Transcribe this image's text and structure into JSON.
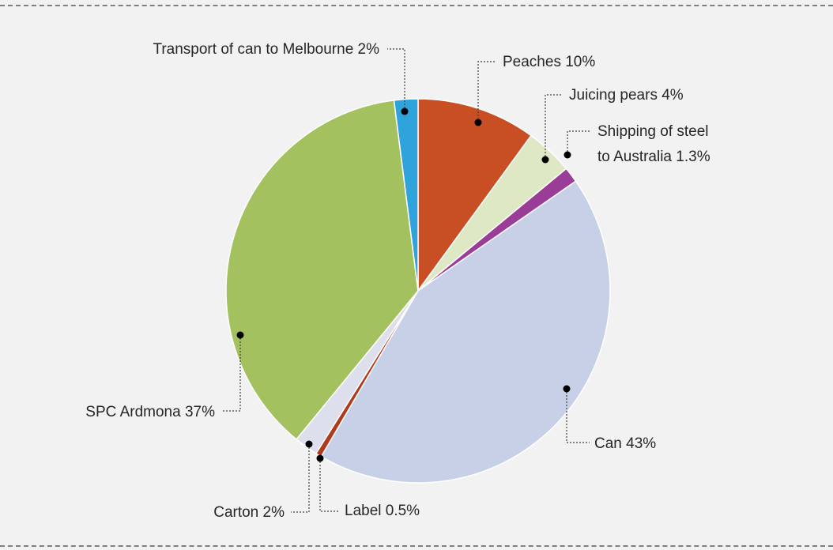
{
  "chart_data": {
    "type": "pie",
    "title": "",
    "slices": [
      {
        "label": "Peaches 10%",
        "value": 10,
        "color": "#c84e24"
      },
      {
        "label": "Juicing pears 4%",
        "value": 4,
        "color": "#dfe8c4"
      },
      {
        "label": "Shipping of steel to Australia 1.3%",
        "label_lines": [
          "Shipping of steel",
          "to Australia 1.3%"
        ],
        "value": 1.3,
        "color": "#9a3d96"
      },
      {
        "label": "Can 43%",
        "value": 43,
        "color": "#c8d0e8"
      },
      {
        "label": "Label 0.5%",
        "value": 0.5,
        "color": "#b03a1e"
      },
      {
        "label": "Carton 2%",
        "value": 2,
        "color": "#dde0ec"
      },
      {
        "label": "SPC Ardmona 37%",
        "value": 37,
        "color": "#a3c25f"
      },
      {
        "label": "Transport of can to Melbourne 2%",
        "value": 2,
        "color": "#2ea3dc"
      }
    ],
    "legend": "none",
    "label_style": "leader-lines with dotted connectors"
  }
}
